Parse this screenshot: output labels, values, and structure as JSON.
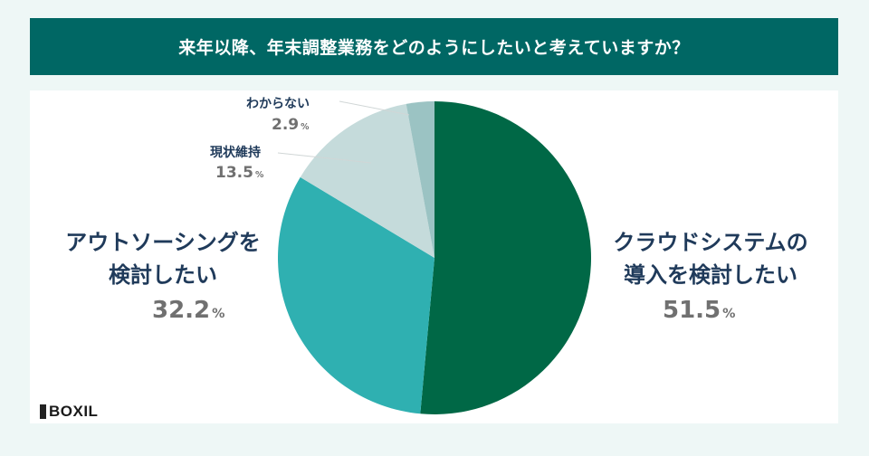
{
  "header": {
    "title": "来年以降、年末調整業務をどのようにしたいと考えていますか？"
  },
  "labels": {
    "cloud": {
      "line1": "クラウドシステムの",
      "line2": "導入を検討したい",
      "value": "51.5",
      "unit": "%"
    },
    "outsourcing": {
      "line1": "アウトソーシングを",
      "line2": "検討したい",
      "value": "32.2",
      "unit": "%"
    },
    "status_quo": {
      "line1": "現状維持",
      "value": "13.5",
      "unit": "%"
    },
    "unknown": {
      "line1": "わからない",
      "value": "2.9",
      "unit": "%"
    }
  },
  "logo": {
    "text": "BOXIL"
  },
  "colors": {
    "cloud": "#006846",
    "outsourcing": "#2fb0b1",
    "status_quo": "#c5dbdb",
    "unknown": "#9bc3c3",
    "title_bg": "#006764"
  },
  "chart_data": {
    "type": "pie",
    "title": "来年以降、年末調整業務をどのようにしたいと考えていますか？",
    "categories": [
      "クラウドシステムの導入を検討したい",
      "アウトソーシングを検討したい",
      "現状維持",
      "わからない"
    ],
    "values": [
      51.5,
      32.2,
      13.5,
      2.9
    ],
    "unit": "%",
    "start_angle": "12 o'clock, clockwise"
  }
}
